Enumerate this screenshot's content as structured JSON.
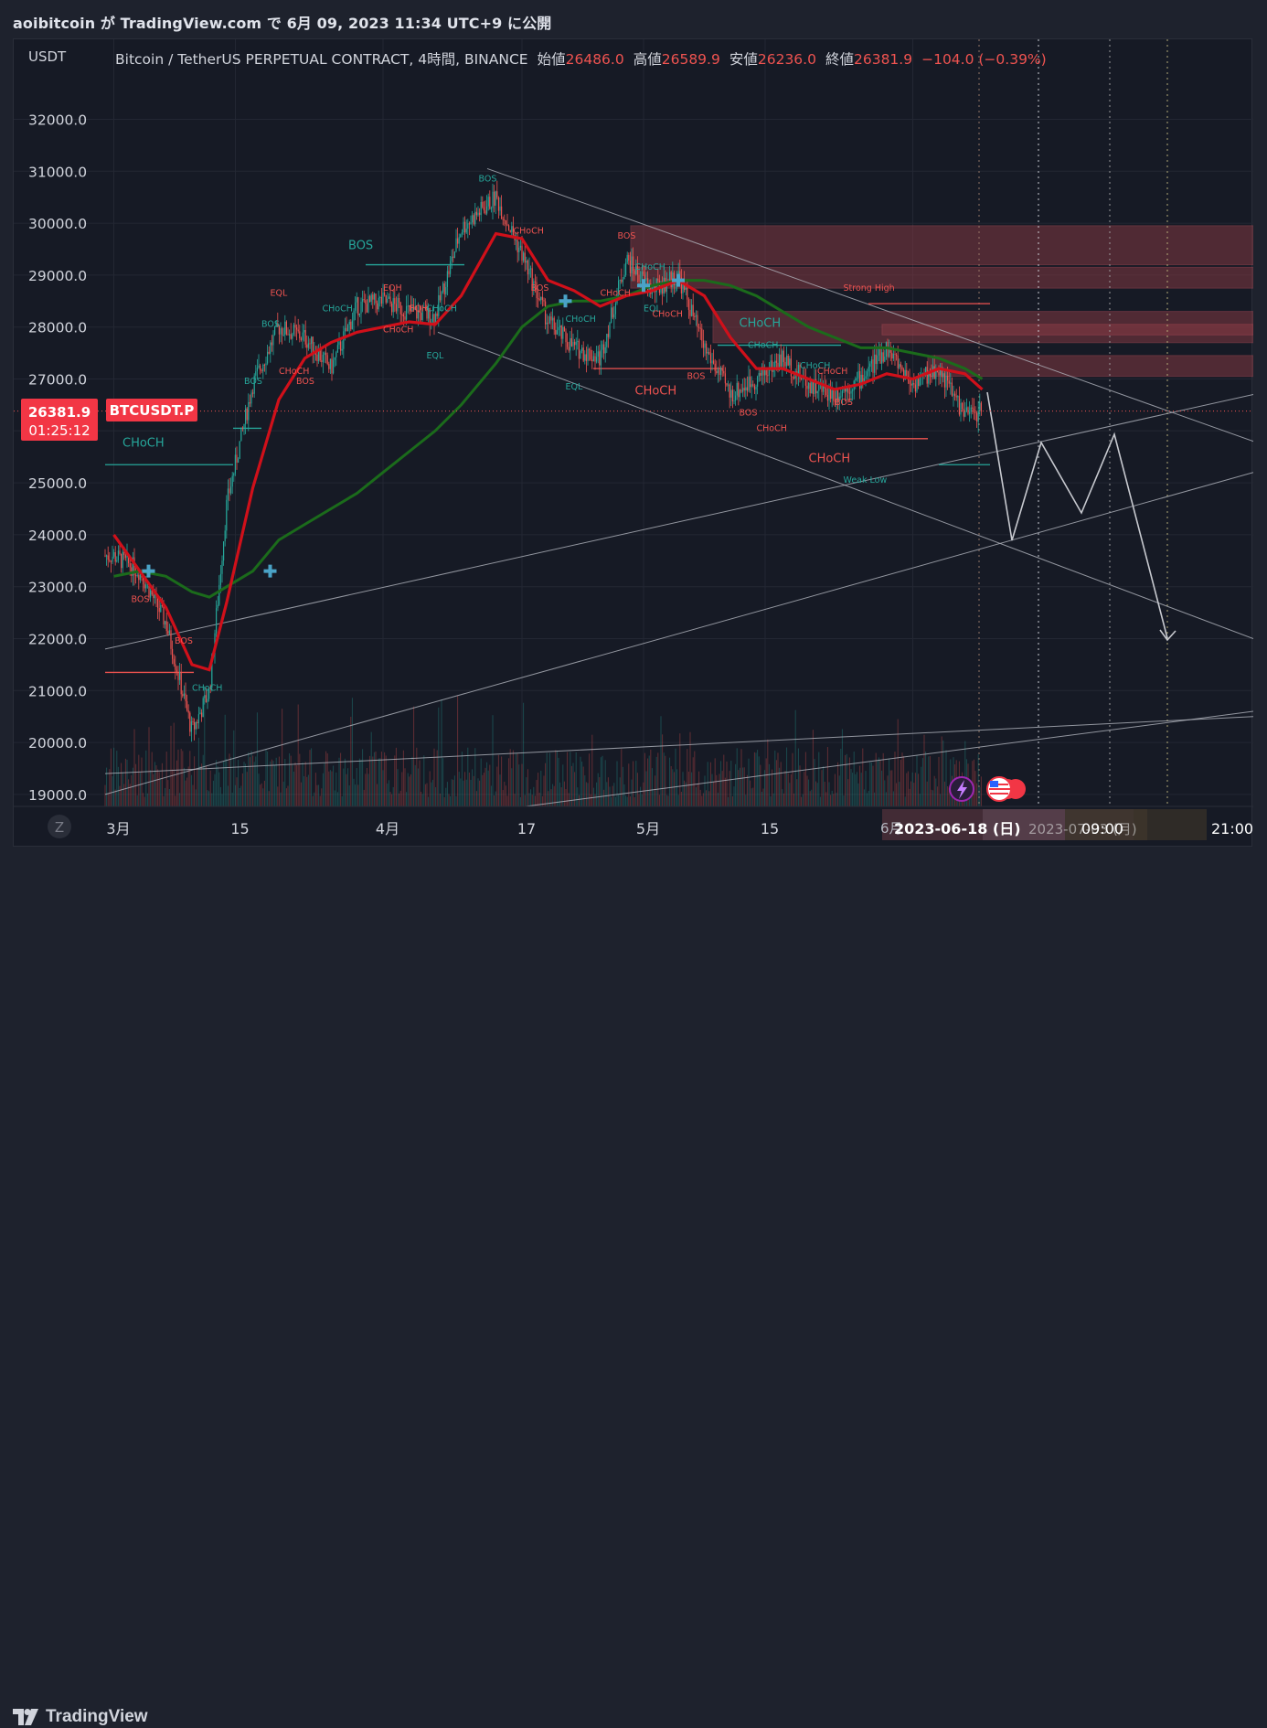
{
  "header": {
    "published_line": "aoibitcoin が TradingView.com で 6月 09, 2023 11:34 UTC+9 に公開"
  },
  "legend": {
    "symbol_line": "Bitcoin / TetherUS PERPETUAL CONTRACT, 4時間, BINANCE",
    "open_label": "始値",
    "open": "26486.0",
    "high_label": "高値",
    "high": "26589.9",
    "low_label": "安値",
    "low": "26236.0",
    "close_label": "終値",
    "close": "26381.9",
    "change": "−104.0 (−0.39%)"
  },
  "price_axis": {
    "currency": "USDT"
  },
  "price_tag": {
    "price": "26381.9",
    "countdown": "01:25:12",
    "ticker": "BTCUSDT.P"
  },
  "time_axis": {
    "z_button": "Z",
    "crosshair_date": "2023-06-18 (日)",
    "crosshair_date_2": "2023-07-03 (月)",
    "crosshair_time": "09:00",
    "crosshair_time_2": "21:00",
    "partial_label": "6月"
  },
  "branding": {
    "name": "TradingView"
  },
  "colors": {
    "up": "#26a69a",
    "down": "#ef5350",
    "ema_fast": "#d0101a",
    "ema_slow": "#1b6b1b",
    "zone": "#8a3a44",
    "trendline": "#b2b5be",
    "accent_cross": "#4aa3c7"
  },
  "chart_data": {
    "type": "line",
    "title": "Bitcoin / TetherUS PERPETUAL CONTRACT, 4時間, BINANCE",
    "ylabel": "USDT",
    "ylim": [
      18750,
      33150
    ],
    "yticks": [
      19000,
      20000,
      21000,
      22000,
      23000,
      24000,
      25000,
      26000,
      27000,
      28000,
      29000,
      30000,
      31000,
      32000
    ],
    "xticks": [
      "3月",
      "15",
      "4月",
      "17",
      "5月",
      "15",
      "6月"
    ],
    "series": [
      {
        "x": [
          "2023-03-01",
          "2023-03-04",
          "2023-03-07",
          "2023-03-10",
          "2023-03-12",
          "2023-03-14",
          "2023-03-17",
          "2023-03-20",
          "2023-03-23",
          "2023-03-26",
          "2023-03-29",
          "2023-04-01",
          "2023-04-04",
          "2023-04-07",
          "2023-04-10",
          "2023-04-14",
          "2023-04-17",
          "2023-04-20",
          "2023-04-23",
          "2023-04-26",
          "2023-04-29",
          "2023-05-02",
          "2023-05-05",
          "2023-05-08",
          "2023-05-11",
          "2023-05-14",
          "2023-05-17",
          "2023-05-20",
          "2023-05-23",
          "2023-05-26",
          "2023-05-29",
          "2023-06-01",
          "2023-06-04",
          "2023-06-07",
          "2023-06-09"
        ],
        "values": [
          23600,
          23300,
          22300,
          20200,
          21000,
          24600,
          26900,
          28000,
          27800,
          27200,
          28400,
          28500,
          28300,
          28200,
          29900,
          30500,
          29400,
          28100,
          27600,
          27400,
          29300,
          28700,
          29000,
          27600,
          26700,
          27000,
          27400,
          26900,
          26700,
          27000,
          27600,
          26900,
          27200,
          26300,
          26382
        ]
      },
      {
        "x": [
          "2023-03-01",
          "2023-03-04",
          "2023-03-07",
          "2023-03-10",
          "2023-03-12",
          "2023-03-14",
          "2023-03-17",
          "2023-03-20",
          "2023-03-23",
          "2023-03-26",
          "2023-03-29",
          "2023-04-01",
          "2023-04-04",
          "2023-04-07",
          "2023-04-10",
          "2023-04-14",
          "2023-04-17",
          "2023-04-20",
          "2023-04-23",
          "2023-04-26",
          "2023-04-29",
          "2023-05-02",
          "2023-05-05",
          "2023-05-08",
          "2023-05-11",
          "2023-05-14",
          "2023-05-17",
          "2023-05-20",
          "2023-05-23",
          "2023-05-26",
          "2023-05-29",
          "2023-06-01",
          "2023-06-04",
          "2023-06-07",
          "2023-06-09"
        ],
        "values": [
          24000,
          23300,
          22600,
          21500,
          21400,
          22700,
          24900,
          26600,
          27400,
          27700,
          27900,
          28000,
          28100,
          28050,
          28600,
          29800,
          29700,
          28900,
          28700,
          28400,
          28600,
          28700,
          28900,
          28600,
          27800,
          27200,
          27200,
          27000,
          26800,
          26900,
          27100,
          27000,
          27200,
          27100,
          26800
        ]
      },
      {
        "x": [
          "2023-03-01",
          "2023-03-04",
          "2023-03-07",
          "2023-03-10",
          "2023-03-12",
          "2023-03-14",
          "2023-03-17",
          "2023-03-20",
          "2023-03-23",
          "2023-03-26",
          "2023-03-29",
          "2023-04-01",
          "2023-04-04",
          "2023-04-07",
          "2023-04-10",
          "2023-04-14",
          "2023-04-17",
          "2023-04-20",
          "2023-04-23",
          "2023-04-26",
          "2023-04-29",
          "2023-05-02",
          "2023-05-05",
          "2023-05-08",
          "2023-05-11",
          "2023-05-14",
          "2023-05-17",
          "2023-05-20",
          "2023-05-23",
          "2023-05-26",
          "2023-05-29",
          "2023-06-01",
          "2023-06-04",
          "2023-06-07",
          "2023-06-09"
        ],
        "values": [
          23200,
          23300,
          23200,
          22900,
          22800,
          23000,
          23300,
          23900,
          24200,
          24500,
          24800,
          25200,
          25600,
          26000,
          26500,
          27300,
          28000,
          28400,
          28500,
          28500,
          28600,
          28800,
          28900,
          28900,
          28800,
          28600,
          28300,
          28000,
          27800,
          27600,
          27600,
          27500,
          27400,
          27200,
          27000
        ]
      }
    ],
    "structure_labels": [
      {
        "text": "BOS",
        "x": "2023-03-03",
        "y": 22700,
        "color": "down"
      },
      {
        "text": "BOS",
        "x": "2023-03-08",
        "y": 21900,
        "color": "down"
      },
      {
        "text": "CHoCH",
        "x": "2023-03-10",
        "y": 21000,
        "color": "up"
      },
      {
        "text": "CHoCH",
        "x": "2023-03-02",
        "y": 25700,
        "color": "up"
      },
      {
        "text": "BOS",
        "x": "2023-03-16",
        "y": 26900,
        "color": "up"
      },
      {
        "text": "BOS",
        "x": "2023-03-18",
        "y": 28000,
        "color": "up"
      },
      {
        "text": "EQL",
        "x": "2023-03-19",
        "y": 28600,
        "color": "down"
      },
      {
        "text": "CHoCH",
        "x": "2023-03-20",
        "y": 27100,
        "color": "down"
      },
      {
        "text": "BOS",
        "x": "2023-03-22",
        "y": 26900,
        "color": "down"
      },
      {
        "text": "CHoCH",
        "x": "2023-03-25",
        "y": 28300,
        "color": "up"
      },
      {
        "text": "BOS",
        "x": "2023-03-28",
        "y": 29500,
        "color": "up"
      },
      {
        "text": "EQH",
        "x": "2023-04-01",
        "y": 28700,
        "color": "down"
      },
      {
        "text": "CHoCH",
        "x": "2023-04-01",
        "y": 27900,
        "color": "down"
      },
      {
        "text": "EQH",
        "x": "2023-04-04",
        "y": 28300,
        "color": "down"
      },
      {
        "text": "CHoCH",
        "x": "2023-04-06",
        "y": 28300,
        "color": "up"
      },
      {
        "text": "EQL",
        "x": "2023-04-06",
        "y": 27400,
        "color": "up"
      },
      {
        "text": "BOS",
        "x": "2023-04-12",
        "y": 30800,
        "color": "up"
      },
      {
        "text": "CHoCH",
        "x": "2023-04-16",
        "y": 29800,
        "color": "down"
      },
      {
        "text": "BOS",
        "x": "2023-04-18",
        "y": 28700,
        "color": "down"
      },
      {
        "text": "CHoCH",
        "x": "2023-04-22",
        "y": 28100,
        "color": "up"
      },
      {
        "text": "EQL",
        "x": "2023-04-22",
        "y": 26800,
        "color": "up"
      },
      {
        "text": "CHoCH",
        "x": "2023-04-26",
        "y": 28600,
        "color": "down"
      },
      {
        "text": "BOS",
        "x": "2023-04-28",
        "y": 29700,
        "color": "down"
      },
      {
        "text": "CHoCH",
        "x": "2023-04-30",
        "y": 29100,
        "color": "up"
      },
      {
        "text": "EQL",
        "x": "2023-05-01",
        "y": 28300,
        "color": "up"
      },
      {
        "text": "CHoCH",
        "x": "2023-05-02",
        "y": 28200,
        "color": "down"
      },
      {
        "text": "CHoCH",
        "x": "2023-04-30",
        "y": 26700,
        "color": "down"
      },
      {
        "text": "BOS",
        "x": "2023-05-06",
        "y": 27000,
        "color": "down"
      },
      {
        "text": "CHoCH",
        "x": "2023-05-13",
        "y": 27600,
        "color": "up"
      },
      {
        "text": "CHoCH",
        "x": "2023-05-12",
        "y": 28000,
        "color": "up"
      },
      {
        "text": "BOS",
        "x": "2023-05-12",
        "y": 26300,
        "color": "down"
      },
      {
        "text": "CHoCH",
        "x": "2023-05-14",
        "y": 26000,
        "color": "down"
      },
      {
        "text": "CHoCH",
        "x": "2023-05-19",
        "y": 27200,
        "color": "up"
      },
      {
        "text": "CHoCH",
        "x": "2023-05-21",
        "y": 27100,
        "color": "down"
      },
      {
        "text": "CHoCH",
        "x": "2023-05-20",
        "y": 25400,
        "color": "down"
      },
      {
        "text": "BOS",
        "x": "2023-05-23",
        "y": 26500,
        "color": "down"
      },
      {
        "text": "Strong High",
        "x": "2023-05-24",
        "y": 28700,
        "color": "down"
      },
      {
        "text": "Weak Low",
        "x": "2023-05-24",
        "y": 25000,
        "color": "up"
      }
    ]
  }
}
